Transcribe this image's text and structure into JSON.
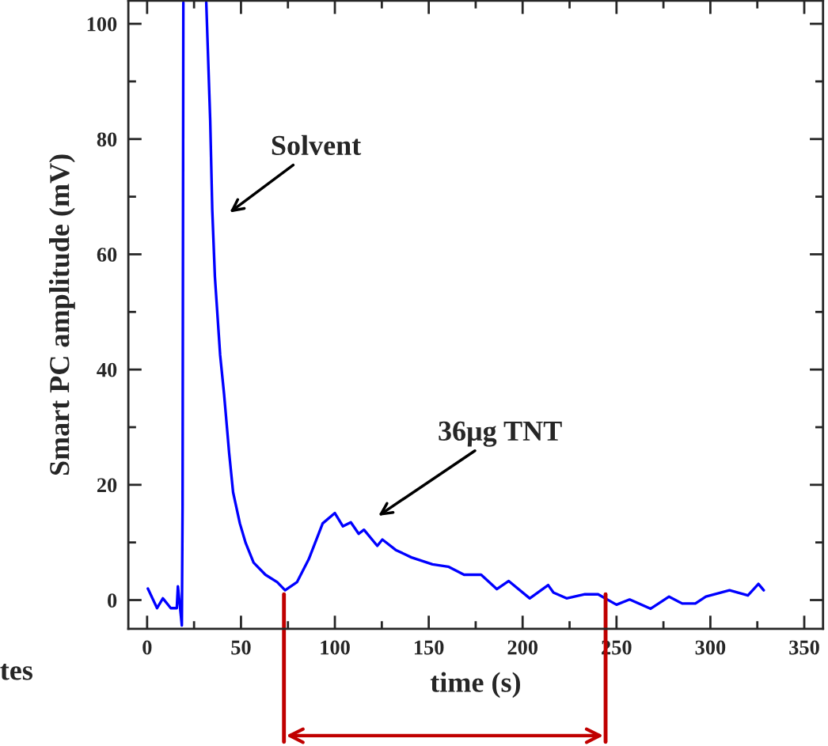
{
  "chart_data": {
    "type": "line",
    "xlabel": "time (s)",
    "ylabel": "Smart PC amplitude (mV)",
    "xlim": [
      -10,
      360
    ],
    "ylim": [
      -5,
      104
    ],
    "xticks": [
      0,
      50,
      100,
      150,
      200,
      250,
      300,
      350
    ],
    "yticks": [
      0,
      20,
      40,
      60,
      80,
      100
    ],
    "grid": false,
    "legend": false,
    "marker": "none",
    "line_style": "solid",
    "series": [
      {
        "color": "#0000ff",
        "x": [
          0.4,
          5.3,
          8.4,
          12.6,
          15.8,
          16.4,
          17.9,
          18.5,
          18.9,
          19.3,
          25,
          31.5,
          33.6,
          34.7,
          36.1,
          38.9,
          41,
          43.7,
          45.8,
          49.4,
          52.5,
          56.7,
          63,
          69.3,
          73.5,
          79.8,
          86.1,
          93.5,
          100,
          104.3,
          108.5,
          112.7,
          115.5,
          122.6,
          125.3,
          132.4,
          140.8,
          152,
          160.4,
          168.8,
          177.9,
          186.3,
          192.6,
          203.8,
          213.6,
          216.4,
          223.4,
          233.2,
          240.2,
          250,
          257,
          268.2,
          278,
          285,
          292,
          297.6,
          310.2,
          320,
          325.6,
          328.4
        ],
        "values": [
          2.0,
          -1.4,
          0.3,
          -1.4,
          -1.4,
          2.4,
          -2.4,
          -4.4,
          16.7,
          103.7,
          null,
          103.7,
          83.3,
          67.7,
          56.1,
          42.5,
          35.7,
          25.5,
          18.7,
          13.3,
          9.9,
          6.5,
          4.4,
          3.1,
          1.7,
          3.1,
          7.1,
          13.3,
          15.1,
          12.8,
          13.5,
          11.5,
          12.2,
          9.4,
          10.5,
          8.7,
          7.4,
          6.2,
          5.8,
          4.4,
          4.4,
          1.9,
          3.3,
          0.3,
          2.6,
          1.3,
          0.3,
          1.0,
          1.0,
          -0.8,
          0.1,
          -1.5,
          0.6,
          -0.6,
          -0.6,
          0.6,
          1.7,
          0.8,
          2.8,
          1.7
        ]
      }
    ],
    "annotations": [
      "Solvent",
      "36μg TNT",
      "tes"
    ]
  }
}
